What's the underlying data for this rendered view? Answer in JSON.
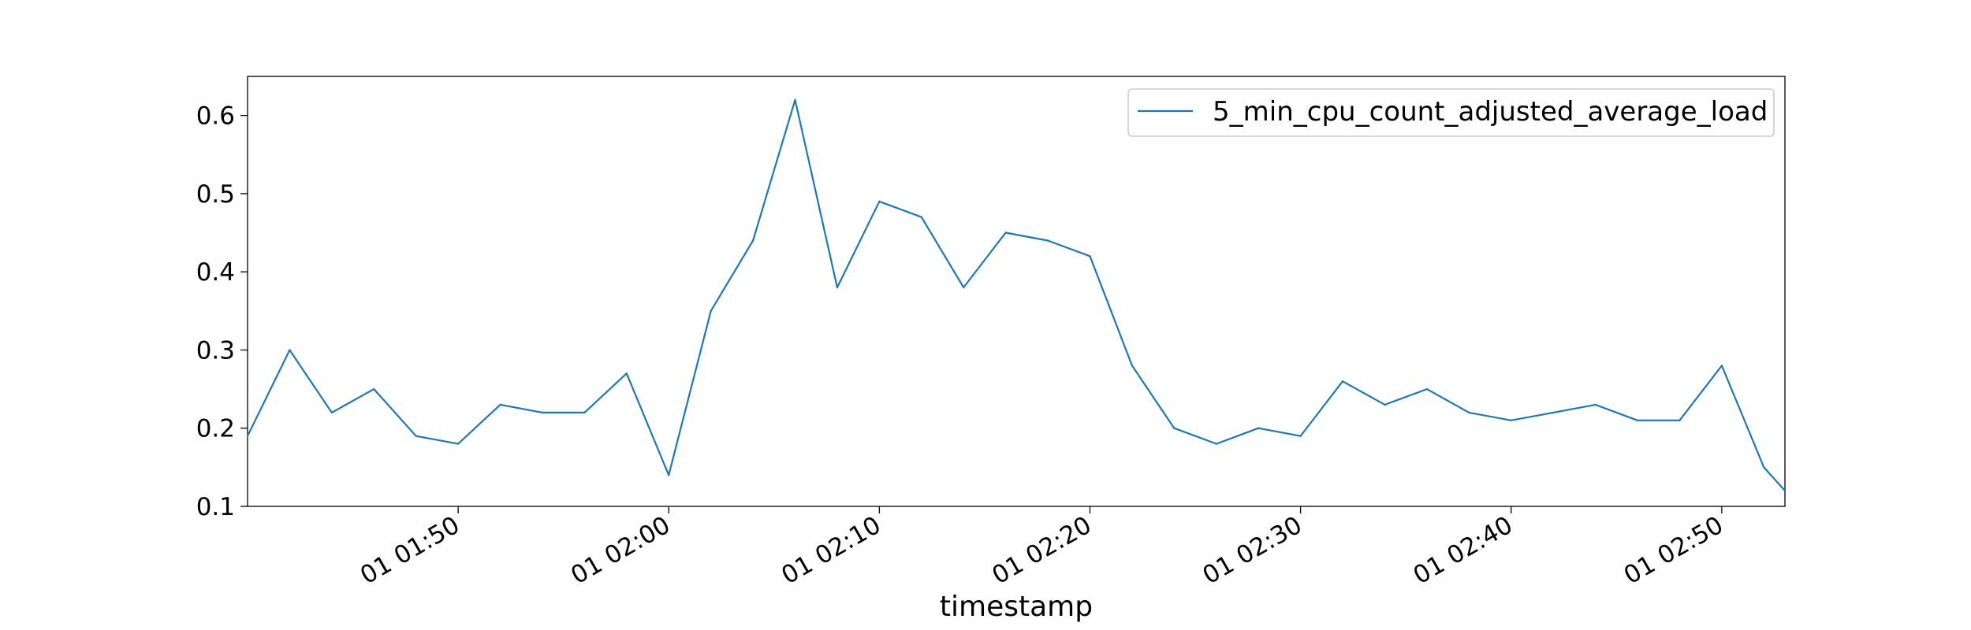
{
  "chart_data": {
    "type": "line",
    "xlabel": "timestamp",
    "ylabel": "",
    "title": "",
    "ylim": [
      0.1,
      0.65
    ],
    "y_ticks": [
      0.1,
      0.2,
      0.3,
      0.4,
      0.5,
      0.6
    ],
    "y_tick_labels": [
      "0.1",
      "0.2",
      "0.3",
      "0.4",
      "0.5",
      "0.6"
    ],
    "x_ticks": [
      "01 01:50",
      "01 02:00",
      "01 02:10",
      "01 02:20",
      "01 02:30",
      "01 02:40",
      "01 02:50"
    ],
    "x_range": [
      "01 01:40",
      "01 02:53"
    ],
    "legend_position": "top-right",
    "grid": false,
    "series_color": "#1f77b4",
    "series": [
      {
        "name": "5_min_cpu_count_adjusted_average_load",
        "x": [
          "01 01:40",
          "01 01:42",
          "01 01:44",
          "01 01:46",
          "01 01:48",
          "01 01:50",
          "01 01:52",
          "01 01:54",
          "01 01:56",
          "01 01:58",
          "01 02:00",
          "01 02:02",
          "01 02:04",
          "01 02:06",
          "01 02:08",
          "01 02:10",
          "01 02:12",
          "01 02:14",
          "01 02:16",
          "01 02:18",
          "01 02:20",
          "01 02:22",
          "01 02:24",
          "01 02:26",
          "01 02:28",
          "01 02:30",
          "01 02:32",
          "01 02:34",
          "01 02:36",
          "01 02:38",
          "01 02:40",
          "01 02:42",
          "01 02:44",
          "01 02:46",
          "01 02:48",
          "01 02:50",
          "01 02:52",
          "01 02:53"
        ],
        "values": [
          0.19,
          0.3,
          0.22,
          0.25,
          0.19,
          0.18,
          0.23,
          0.22,
          0.22,
          0.27,
          0.14,
          0.35,
          0.44,
          0.62,
          0.38,
          0.49,
          0.47,
          0.38,
          0.45,
          0.44,
          0.42,
          0.28,
          0.2,
          0.18,
          0.2,
          0.19,
          0.26,
          0.23,
          0.25,
          0.22,
          0.21,
          0.22,
          0.23,
          0.21,
          0.21,
          0.28,
          0.15,
          0.12
        ]
      }
    ]
  }
}
